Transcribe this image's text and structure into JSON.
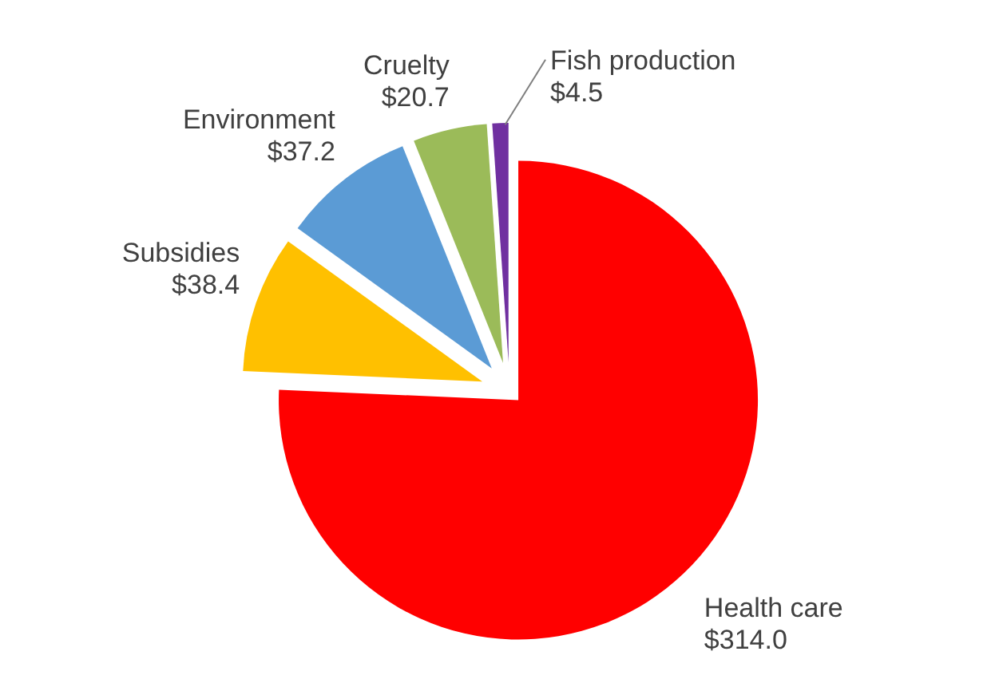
{
  "chart_data": {
    "type": "pie",
    "categories": [
      "Health care",
      "Subsidies",
      "Environment",
      "Cruelty",
      "Fish production"
    ],
    "values": [
      314.0,
      38.4,
      37.2,
      20.7,
      4.5
    ],
    "value_labels": [
      "$314.0",
      "$38.4",
      "$37.2",
      "$20.7",
      "$4.5"
    ],
    "colors": [
      "#ff0000",
      "#ffc000",
      "#5b9bd5",
      "#9bbb59",
      "#7030a0"
    ],
    "legend": false
  }
}
